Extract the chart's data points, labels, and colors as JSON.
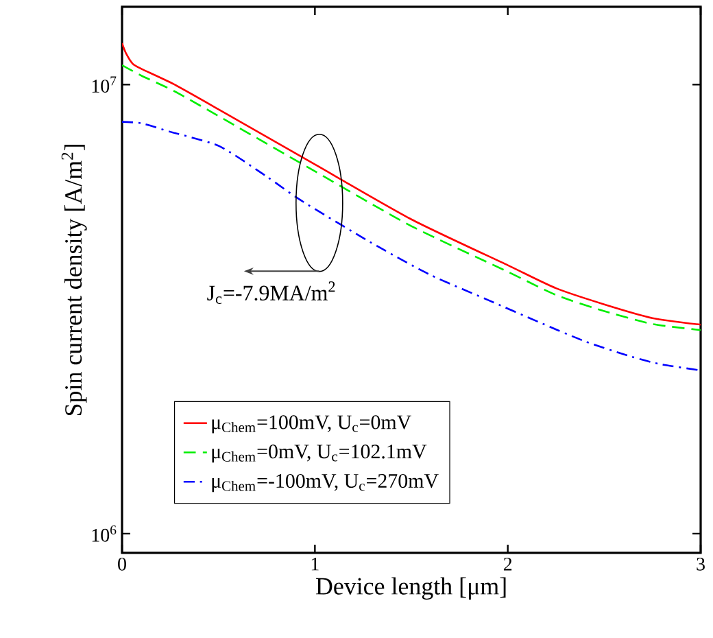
{
  "chart_data": {
    "type": "line",
    "xlabel": "Device length [μm]",
    "ylabel": "Spin current density [A/m$^{2}$]",
    "log": "y",
    "grid": false,
    "legend": "bottom left",
    "marker": "none",
    "xlim": [
      0,
      3
    ],
    "xticks": [
      0,
      1,
      2,
      3
    ],
    "ylim": [
      906000,
      14900000
    ],
    "yticks": [
      {
        "value": 1000000,
        "label": "10$^{6}$"
      },
      {
        "value": 10000000,
        "label": "10$^{7}$"
      }
    ],
    "annotations": [
      "J$_{c}$=-7.9MA/m$^{2}$"
    ],
    "series": [
      {
        "name": "μ$_{Chem}$=100mV, U$_{c}$=0mV",
        "color": "#ff0000",
        "line_style": "solid",
        "x": [
          0,
          0.02,
          0.055,
          0.1,
          0.268,
          0.5,
          1.0,
          1.5,
          2.0,
          2.25,
          2.5,
          2.75,
          3.0
        ],
        "values": [
          12360000,
          11750000,
          11130000,
          10840000,
          10020000,
          8810000,
          6640000,
          5010000,
          3960000,
          3520000,
          3240000,
          3020000,
          2920000
        ]
      },
      {
        "name": "μ$_{Chem}$=0mV, U$_{c}$=102.1mV",
        "color": "#00ee00",
        "line_style": "dashed",
        "x": [
          0,
          0.1,
          0.268,
          0.5,
          1.0,
          1.5,
          2.0,
          2.25,
          2.5,
          2.75,
          3.0
        ],
        "values": [
          11040000,
          10470000,
          9680000,
          8510000,
          6410000,
          4840000,
          3830000,
          3400000,
          3130000,
          2930000,
          2840000
        ]
      },
      {
        "name": "μ$_{Chem}$=-100mV, U$_{c}$=270mV",
        "color": "#0000ff",
        "line_style": "dashdot",
        "x": [
          0,
          0.1,
          0.25,
          0.505,
          0.75,
          0.931,
          1.286,
          1.592,
          1.9,
          2.16,
          2.4,
          2.637,
          2.8,
          3.0
        ],
        "values": [
          8260000,
          8200000,
          7850000,
          7290000,
          6240000,
          5510000,
          4460000,
          3780000,
          3310000,
          2960000,
          2680000,
          2480000,
          2380000,
          2310000
        ]
      }
    ]
  }
}
